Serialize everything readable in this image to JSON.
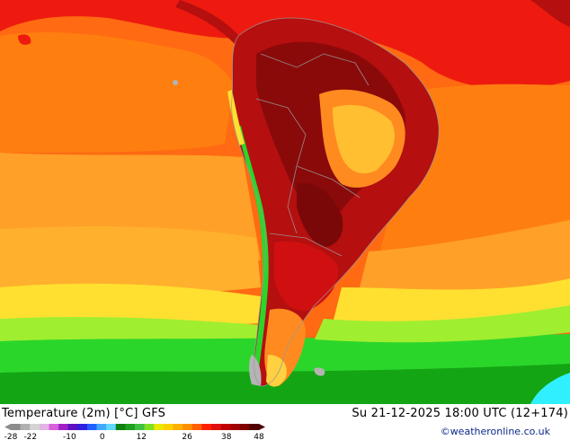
{
  "header": {
    "left_title": "Temperature (2m) [°C] GFS",
    "right_title": "Su 21-12-2025 18:00 UTC (12+174)"
  },
  "credit": "©weatheronline.co.uk",
  "colorbar": {
    "ticks": [
      "-28",
      "-22",
      "-10",
      "0",
      "12",
      "26",
      "38",
      "48"
    ],
    "colors": [
      "#8c8c8c",
      "#b0b0b0",
      "#d4d4d4",
      "#e3b3e3",
      "#d960d9",
      "#a020c8",
      "#6010c0",
      "#3020e0",
      "#2060ff",
      "#40a8ff",
      "#60d8ff",
      "#108010",
      "#20a020",
      "#40c040",
      "#80e020",
      "#e8e800",
      "#ffd000",
      "#ffb000",
      "#ff9000",
      "#ff6000",
      "#ff2000",
      "#e01010",
      "#c00000",
      "#a00000",
      "#800000",
      "#500000"
    ]
  },
  "map_colors": {
    "deep_red": "#8a0a0a",
    "red": "#b50f0f",
    "bright_red": "#ee1a0f",
    "orange_red": "#ff5010",
    "orange": "#ff7e10",
    "light_orange": "#ffa028",
    "yellow_orange": "#ffbf30",
    "yellow": "#ffe030",
    "lime": "#a0ee30",
    "green": "#2bd62b",
    "dark_green": "#14a514",
    "cyan": "#30f0ff",
    "grey": "#b4b4b4"
  }
}
